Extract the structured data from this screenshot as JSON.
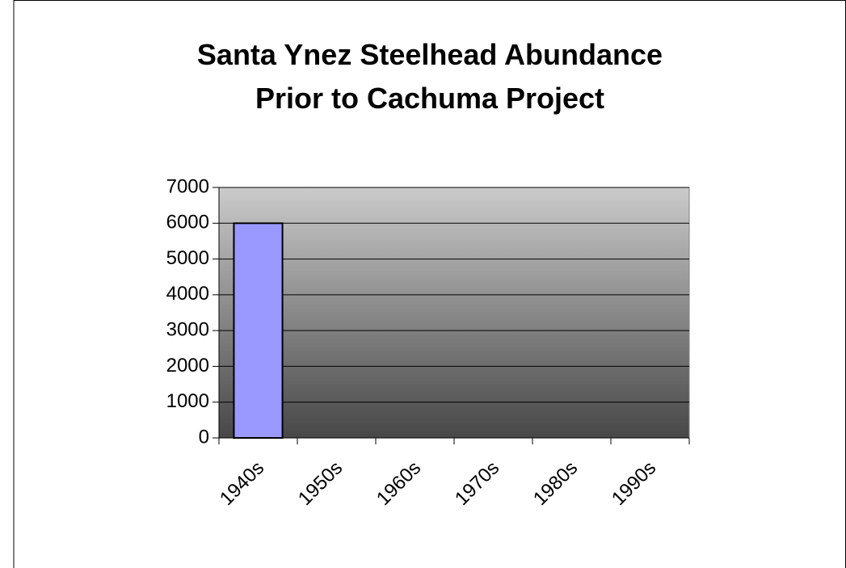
{
  "chart_data": {
    "type": "bar",
    "title": [
      "Santa Ynez Steelhead Abundance",
      "Prior to Cachuma Project"
    ],
    "categories": [
      "1940s",
      "1950s",
      "1960s",
      "1970s",
      "1980s",
      "1990s"
    ],
    "values": [
      6000,
      null,
      null,
      null,
      null,
      null
    ],
    "color": "#9999ff",
    "ylim": [
      0,
      7000
    ],
    "yticks": [
      0,
      1000,
      2000,
      3000,
      4000,
      5000,
      6000,
      7000
    ],
    "grid": true
  }
}
